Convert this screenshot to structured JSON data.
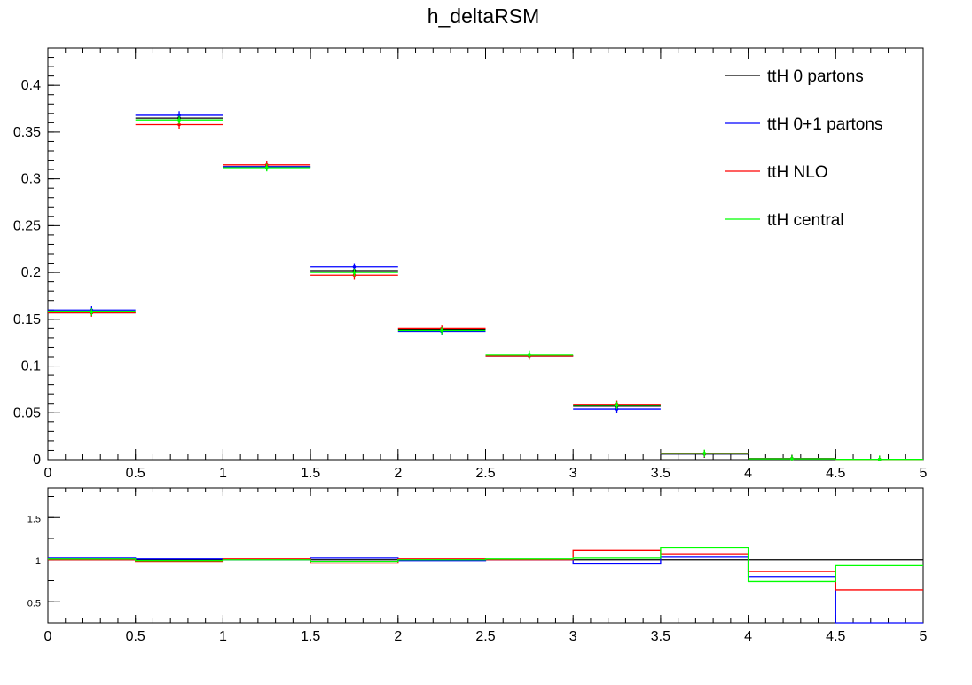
{
  "chart_data": [
    {
      "type": "line",
      "title": "h_deltaRSM",
      "xlabel": "",
      "ylabel": "",
      "xlim": [
        0,
        5
      ],
      "ylim": [
        0,
        0.44
      ],
      "bin_edges": [
        0,
        0.5,
        1,
        1.5,
        2,
        2.5,
        3,
        3.5,
        4,
        4.5,
        5
      ],
      "x_ticks": [
        "0",
        "0.5",
        "1",
        "1.5",
        "2",
        "2.5",
        "3",
        "3.5",
        "4",
        "4.5",
        "5"
      ],
      "y_ticks": [
        {
          "v": 0,
          "label": "0"
        },
        {
          "v": 0.05,
          "label": "0.05"
        },
        {
          "v": 0.1,
          "label": "0.1"
        },
        {
          "v": 0.15,
          "label": "0.15"
        },
        {
          "v": 0.2,
          "label": "0.2"
        },
        {
          "v": 0.25,
          "label": "0.25"
        },
        {
          "v": 0.3,
          "label": "0.3"
        },
        {
          "v": 0.35,
          "label": "0.35"
        },
        {
          "v": 0.4,
          "label": "0.4"
        }
      ],
      "legend_position": "top-right",
      "grid": false,
      "series": [
        {
          "name": "ttH 0 partons",
          "color": "#000000",
          "values": [
            0.157,
            0.365,
            0.313,
            0.202,
            0.139,
            0.111,
            0.057,
            0.006,
            0.0012,
            0.0003
          ]
        },
        {
          "name": "ttH 0+1 partons",
          "color": "#0000ff",
          "values": [
            0.16,
            0.368,
            0.313,
            0.206,
            0.137,
            0.111,
            0.054,
            0.0062,
            0.001,
            0.0001
          ]
        },
        {
          "name": "ttH NLO",
          "color": "#ff0000",
          "values": [
            0.157,
            0.358,
            0.315,
            0.197,
            0.14,
            0.111,
            0.059,
            0.0064,
            0.001,
            0.0002
          ]
        },
        {
          "name": "ttH central",
          "color": "#00ff00",
          "values": [
            0.158,
            0.363,
            0.312,
            0.2,
            0.138,
            0.112,
            0.058,
            0.0068,
            0.0009,
            0.0003
          ]
        }
      ]
    },
    {
      "type": "line",
      "title": "",
      "xlim": [
        0,
        5
      ],
      "ylim": [
        0.25,
        1.85
      ],
      "bin_edges": [
        0,
        0.5,
        1,
        1.5,
        2,
        2.5,
        3,
        3.5,
        4,
        4.5,
        5
      ],
      "x_ticks": [
        "0",
        "0.5",
        "1",
        "1.5",
        "2",
        "2.5",
        "3",
        "3.5",
        "4",
        "4.5",
        "5"
      ],
      "y_ticks": [
        {
          "v": 0.5,
          "label": "0.5"
        },
        {
          "v": 1,
          "label": "1"
        },
        {
          "v": 1.5,
          "label": "1.5"
        }
      ],
      "series": [
        {
          "color": "#000000",
          "values": [
            1,
            1,
            1,
            1,
            1,
            1,
            1,
            1,
            1,
            1
          ]
        },
        {
          "color": "#0000ff",
          "values": [
            1.02,
            1.01,
            1.0,
            1.02,
            0.99,
            1.0,
            0.95,
            1.03,
            0.8,
            0.25
          ]
        },
        {
          "color": "#ff0000",
          "values": [
            1.0,
            0.98,
            1.01,
            0.96,
            1.01,
            1.0,
            1.11,
            1.07,
            0.86,
            0.64
          ]
        },
        {
          "color": "#00ff00",
          "values": [
            1.01,
            0.99,
            1.0,
            0.98,
            1.0,
            1.01,
            1.02,
            1.14,
            0.74,
            0.93
          ]
        }
      ]
    }
  ]
}
